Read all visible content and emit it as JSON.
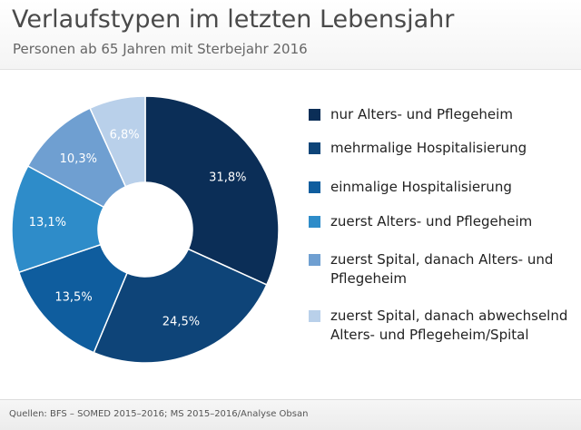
{
  "header": {
    "title": "Verlaufstypen im letzten Lebensjahr",
    "subtitle": "Personen ab 65 Jahren mit Sterbejahr 2016"
  },
  "chart_data": {
    "type": "pie",
    "donut": true,
    "title": "Verlaufstypen im letzten Lebensjahr",
    "subtitle": "Personen ab 65 Jahren mit Sterbejahr 2016",
    "categories": [
      "nur Alters- und Pflegeheim",
      "mehrmalige Hospitalisierung",
      "einmalige Hospitalisierung",
      "zuerst Alters- und Pflegeheim",
      "zuerst Spital, danach Alters- und Pflegeheim",
      "zuerst Spital, danach abwechselnd Alters- und Pflegeheim/Spital"
    ],
    "values": [
      31.8,
      24.5,
      13.5,
      13.1,
      10.3,
      6.8
    ],
    "data_labels": [
      "31,8%",
      "24,5%",
      "13,5%",
      "13,1%",
      "10,3%",
      "6,8%"
    ],
    "colors": [
      "#0b2e57",
      "#0e4478",
      "#0f5d9e",
      "#2e8cc9",
      "#6f9fd1",
      "#b9d0ea"
    ],
    "legend_position": "right"
  },
  "legend": [
    {
      "label": "nur Alters- und Pflegeheim"
    },
    {
      "label": "mehrmalige Hospitalisierung"
    },
    {
      "label": "einmalige Hospitalisierung"
    },
    {
      "label": "zuerst Alters- und Pflegeheim"
    },
    {
      "label": "zuerst Spital, danach Alters- und Pflegeheim"
    },
    {
      "label": "zuerst Spital, danach abwechselnd Alters- und Pflegeheim/Spital"
    }
  ],
  "footer": {
    "source": "Quellen: BFS – SOMED 2015–2016; MS 2015–2016/Analyse Obsan"
  }
}
